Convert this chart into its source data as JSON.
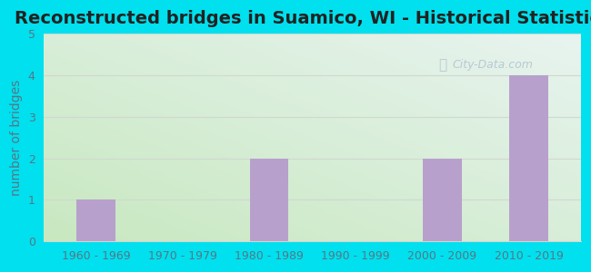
{
  "title": "Reconstructed bridges in Suamico, WI - Historical Statistics",
  "categories": [
    "1960 - 1969",
    "1970 - 1979",
    "1980 - 1989",
    "1990 - 1999",
    "2000 - 2009",
    "2010 - 2019"
  ],
  "values": [
    1,
    0,
    2,
    0,
    2,
    4
  ],
  "bar_color": "#b8a0cc",
  "background_outer": "#00e0ee",
  "background_inner_bottom_left": "#c8e8c0",
  "background_inner_top_right": "#e8f4f0",
  "ylabel": "number of bridges",
  "ylim": [
    0,
    5
  ],
  "yticks": [
    0,
    1,
    2,
    3,
    4,
    5
  ],
  "title_fontsize": 14,
  "ylabel_fontsize": 10,
  "tick_fontsize": 9,
  "tick_color": "#557788",
  "watermark": "City-Data.com",
  "grid_color": "#d0d8d0",
  "title_color": "#222222"
}
